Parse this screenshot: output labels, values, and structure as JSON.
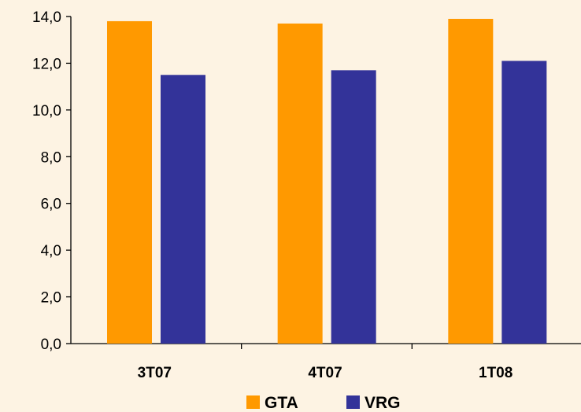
{
  "chart_data": {
    "type": "bar",
    "categories": [
      "3T07",
      "4T07",
      "1T08"
    ],
    "series": [
      {
        "name": "GTA",
        "color": "#ff9900",
        "values": [
          13.8,
          13.7,
          13.9
        ]
      },
      {
        "name": "VRG",
        "color": "#333399",
        "values": [
          11.5,
          11.7,
          12.1
        ]
      }
    ],
    "yticks": [
      "0,0",
      "2,0",
      "4,0",
      "6,0",
      "8,0",
      "10,0",
      "12,0",
      "14,0"
    ],
    "ylim": [
      0,
      14
    ],
    "ystep": 2,
    "grid": false,
    "legend": "bottom",
    "title": "",
    "xlabel": "",
    "ylabel": ""
  }
}
